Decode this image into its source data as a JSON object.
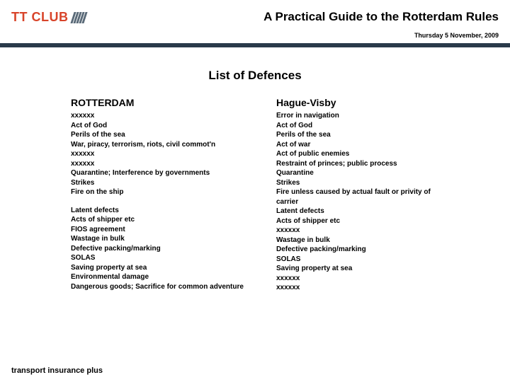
{
  "header": {
    "logo_text": "TT CLUB",
    "doc_title": "A Practical Guide to the Rotterdam Rules",
    "date": "Thursday 5 November, 2009"
  },
  "section_title": "List of Defences",
  "columns": {
    "left": {
      "heading": "ROTTERDAM",
      "items_a": [
        "xxxxxx",
        "Act of God",
        "Perils of the sea",
        "War, piracy, terrorism, riots, civil commot'n",
        "xxxxxx",
        "xxxxxx",
        "Quarantine; Interference by governments",
        "Strikes",
        "Fire on the ship"
      ],
      "items_b": [
        "Latent defects",
        "Acts of shipper etc",
        "FIOS agreement",
        "Wastage in bulk",
        "Defective packing/marking",
        "SOLAS",
        "Saving property at sea",
        "Environmental damage",
        "Dangerous goods; Sacrifice for common adventure"
      ]
    },
    "right": {
      "heading": "Hague-Visby",
      "items_a": [
        "Error in navigation",
        "Act of God",
        "Perils of the sea",
        "Act of war",
        "Act of public enemies",
        "Restraint of princes; public process",
        "Quarantine",
        "Strikes",
        "Fire unless caused by actual fault or privity of carrier",
        "Latent defects",
        "Acts of shipper etc",
        "xxxxxx",
        "Wastage in bulk",
        "Defective packing/marking",
        "SOLAS",
        "Saving property at sea",
        "xxxxxx",
        "xxxxxx"
      ]
    }
  },
  "footer": "transport insurance plus",
  "colors": {
    "accent": "#d8442a",
    "rule": "#2a3a4a",
    "logo_mark": "#5a6a78"
  }
}
